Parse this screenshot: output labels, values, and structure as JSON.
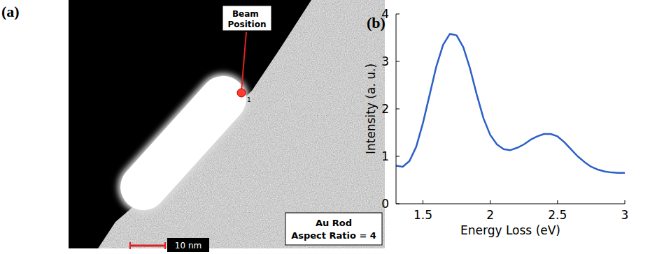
{
  "figure": {
    "labels": [
      "(a)",
      "(b)"
    ],
    "image": {
      "beam_label": "Beam Position",
      "beam_marker": "1",
      "sample_label": [
        "Au Rod",
        "Aspect Ratio = 4"
      ],
      "scale_bar": "10 nm"
    }
  },
  "chart_data": {
    "type": "line",
    "x_label": "Energy Loss (eV)",
    "y_label": "Intensity (a. u.)",
    "x": [
      1.3,
      1.35,
      1.4,
      1.45,
      1.5,
      1.55,
      1.6,
      1.65,
      1.7,
      1.75,
      1.8,
      1.85,
      1.9,
      1.95,
      2.0,
      2.05,
      2.1,
      2.15,
      2.2,
      2.25,
      2.3,
      2.35,
      2.4,
      2.45,
      2.5,
      2.55,
      2.6,
      2.65,
      2.7,
      2.75,
      2.8,
      2.85,
      2.9,
      2.95,
      3.0
    ],
    "values": [
      0.8,
      0.78,
      0.9,
      1.2,
      1.7,
      2.3,
      2.9,
      3.35,
      3.58,
      3.55,
      3.3,
      2.85,
      2.3,
      1.8,
      1.45,
      1.25,
      1.15,
      1.13,
      1.18,
      1.25,
      1.35,
      1.42,
      1.47,
      1.47,
      1.42,
      1.3,
      1.15,
      1.0,
      0.88,
      0.78,
      0.72,
      0.68,
      0.66,
      0.65,
      0.65
    ],
    "color": "#2c5fc7",
    "xlim": [
      1.3,
      3
    ],
    "ylim": [
      0,
      4
    ],
    "xticks": [
      1.5,
      2,
      2.5,
      3
    ],
    "yticks": [
      0,
      1,
      2,
      3,
      4
    ],
    "grid": false
  }
}
